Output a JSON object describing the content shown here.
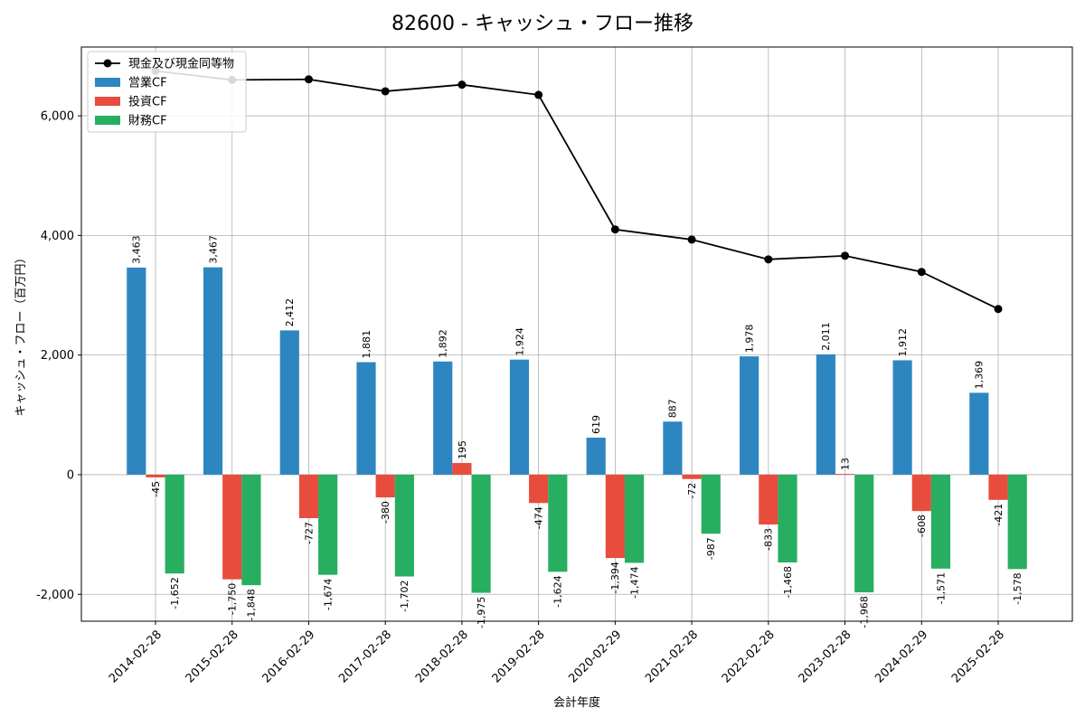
{
  "chart_data": {
    "type": "bar",
    "title": "82600 - キャッシュ・フロー推移",
    "xlabel": "会計年度",
    "ylabel": "キャッシュ・フロー（百万円）",
    "categories": [
      "2014-02-28",
      "2015-02-28",
      "2016-02-29",
      "2017-02-28",
      "2018-02-28",
      "2019-02-28",
      "2020-02-29",
      "2021-02-28",
      "2022-02-28",
      "2023-02-28",
      "2024-02-29",
      "2025-02-28"
    ],
    "ylim": [
      -2450,
      7150
    ],
    "yticks": [
      -2000,
      0,
      2000,
      4000,
      6000
    ],
    "ytick_labels": [
      "-2,000",
      "0",
      "2,000",
      "4,000",
      "6,000"
    ],
    "grid": true,
    "legend_position": "top-left",
    "series": [
      {
        "name": "営業CF",
        "kind": "bar",
        "color": "#2e86c1",
        "values": [
          3463,
          3467,
          2412,
          1881,
          1892,
          1924,
          619,
          887,
          1978,
          2011,
          1912,
          1369
        ],
        "labels": [
          "3,463",
          "3,467",
          "2,412",
          "1,881",
          "1,892",
          "1,924",
          "619",
          "887",
          "1,978",
          "2,011",
          "1,912",
          "1,369"
        ]
      },
      {
        "name": "投資CF",
        "kind": "bar",
        "color": "#e74c3c",
        "values": [
          -45,
          -1750,
          -727,
          -380,
          195,
          -474,
          -1394,
          -72,
          -833,
          13,
          -608,
          -421
        ],
        "labels": [
          "-45",
          "-1,750",
          "-727",
          "-380",
          "195",
          "-474",
          "-1,394",
          "-72",
          "-833",
          "13",
          "-608",
          "-421"
        ]
      },
      {
        "name": "財務CF",
        "kind": "bar",
        "color": "#27ae60",
        "values": [
          -1652,
          -1848,
          -1674,
          -1702,
          -1975,
          -1624,
          -1474,
          -987,
          -1468,
          -1968,
          -1571,
          -1578
        ],
        "labels": [
          "-1,652",
          "-1,848",
          "-1,674",
          "-1,702",
          "-1,975",
          "-1,624",
          "-1,474",
          "-987",
          "-1,468",
          "-1,968",
          "-1,571",
          "-1,578"
        ]
      },
      {
        "name": "現金及び現金同等物",
        "kind": "line",
        "color": "#000000",
        "values": [
          6750,
          6600,
          6610,
          6410,
          6520,
          6350,
          4100,
          3930,
          3600,
          3660,
          3390,
          2770
        ]
      }
    ]
  }
}
